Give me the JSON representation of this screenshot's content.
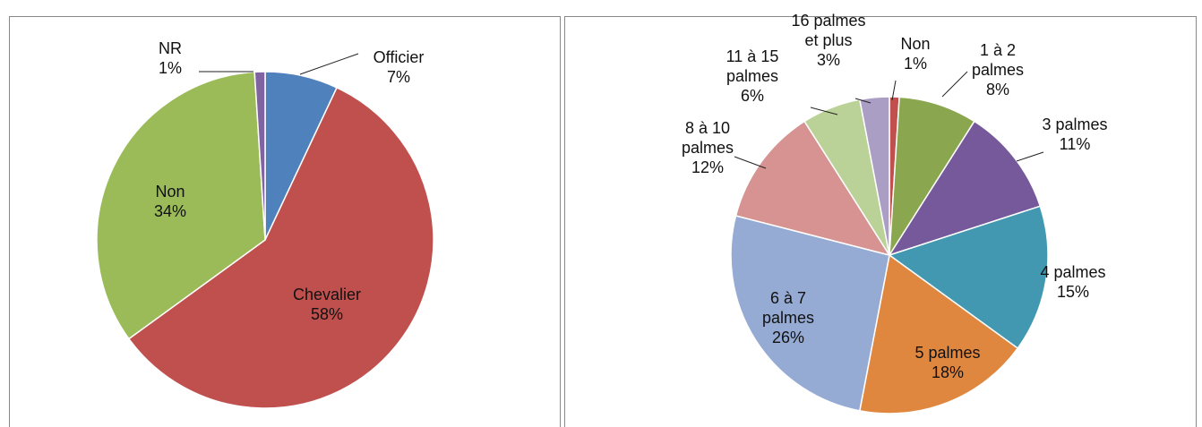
{
  "chart_data": [
    {
      "type": "pie",
      "categories": [
        "Officier",
        "Chevalier",
        "Non",
        "NR"
      ],
      "values": [
        7,
        58,
        34,
        1
      ],
      "value_labels": [
        "7%",
        "58%",
        "34%",
        "1%"
      ],
      "colors": [
        "#4f81bd",
        "#c0504d",
        "#9bbb59",
        "#8064a2"
      ]
    },
    {
      "type": "pie",
      "categories": [
        "Non",
        "1 à 2 palmes",
        "3 palmes",
        "4 palmes",
        "5 palmes",
        "6 à 7 palmes",
        "8 à 10 palmes",
        "11 à 15 palmes",
        "16 palmes et plus"
      ],
      "values": [
        1,
        8,
        11,
        15,
        18,
        26,
        12,
        6,
        3
      ],
      "value_labels": [
        "1%",
        "8%",
        "11%",
        "15%",
        "18%",
        "26%",
        "12%",
        "6%",
        "3%"
      ],
      "colors": [
        "#c0504d",
        "#8aa64e",
        "#76599a",
        "#4198b0",
        "#e0873f",
        "#95abd4",
        "#d69391",
        "#bad197",
        "#ab9ec5"
      ]
    }
  ]
}
